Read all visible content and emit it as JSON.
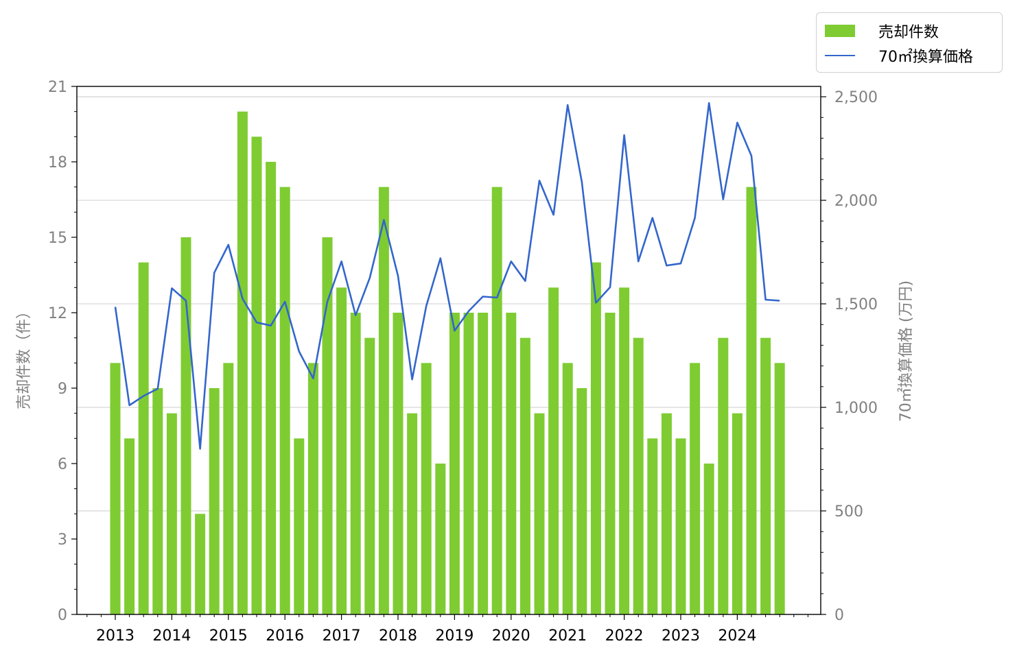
{
  "chart_data": {
    "type": "bar",
    "title": "",
    "xlabel": "",
    "ylabel_left": "売却件数（件）",
    "ylabel_right": "70㎡換算価格 (万円)",
    "ylim_left": [
      0,
      21
    ],
    "ylim_right": [
      0,
      2550
    ],
    "left_ticks": [
      "0",
      "3",
      "6",
      "9",
      "12",
      "15",
      "18",
      "21"
    ],
    "right_ticks": [
      "0",
      "500",
      "1,000",
      "1,500",
      "2,000",
      "2,500"
    ],
    "year_labels": [
      "2013",
      "2014",
      "2015",
      "2016",
      "2017",
      "2018",
      "2019",
      "2020",
      "2021",
      "2022",
      "2023",
      "2024"
    ],
    "grid": "horizontal, right axis",
    "legend_position": "top-right",
    "colors": {
      "bar": "#7fcc32",
      "line": "#3366cc"
    },
    "series": [
      {
        "name": "売却件数",
        "type": "bar",
        "axis": "left",
        "values": [
          10,
          7,
          14,
          9,
          8,
          15,
          4,
          9,
          10,
          20,
          19,
          18,
          17,
          7,
          10,
          15,
          13,
          12,
          11,
          17,
          12,
          8,
          10,
          6,
          12,
          12,
          12,
          17,
          12,
          11,
          8,
          13,
          10,
          9,
          14,
          12,
          13,
          11,
          7,
          8,
          7,
          10,
          6,
          11,
          8,
          17,
          11,
          10
        ]
      },
      {
        "name": "70㎡換算価格",
        "type": "line",
        "axis": "right",
        "values": [
          1485,
          1010,
          1055,
          1090,
          1575,
          1515,
          800,
          1650,
          1785,
          1525,
          1410,
          1395,
          1510,
          1270,
          1140,
          1510,
          1705,
          1445,
          1625,
          1905,
          1635,
          1135,
          1490,
          1720,
          1370,
          1465,
          1535,
          1530,
          1705,
          1610,
          2095,
          1930,
          2460,
          2090,
          1505,
          1580,
          2315,
          1705,
          1915,
          1685,
          1695,
          1915,
          2470,
          2005,
          2375,
          2215,
          1520,
          1515
        ]
      }
    ]
  },
  "legend": {
    "bar_label": "売却件数",
    "line_label": "70㎡換算価格"
  }
}
